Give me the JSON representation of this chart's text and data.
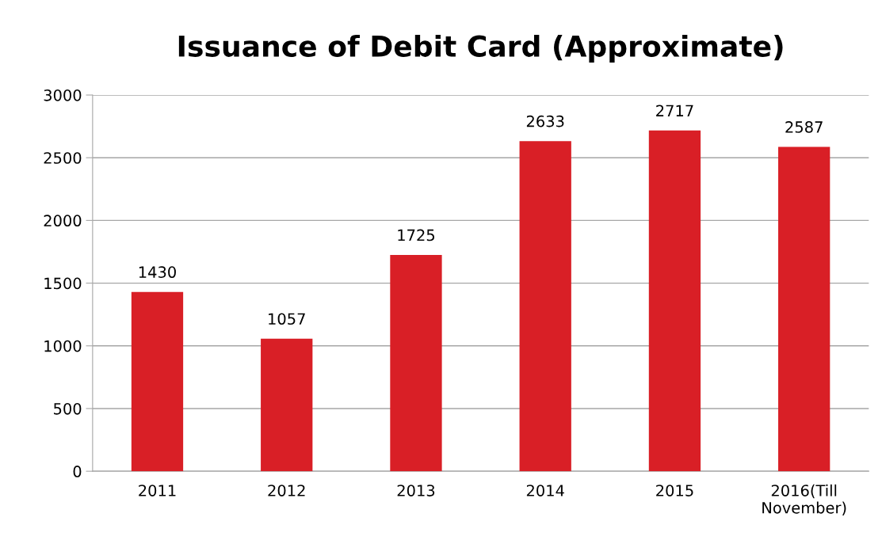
{
  "chart_data": {
    "type": "bar",
    "title": "Issuance of Debit Card (Approximate)",
    "categories": [
      "2011",
      "2012",
      "2013",
      "2014",
      "2015",
      "2016(Till\nNovember)"
    ],
    "values": [
      1430,
      1057,
      1725,
      2633,
      2717,
      2587
    ],
    "color": "#d91f26",
    "ylim": [
      0,
      3000
    ],
    "yticks": [
      0,
      500,
      1000,
      1500,
      2000,
      2500,
      3000
    ],
    "grid": "y",
    "data_labels": true
  }
}
